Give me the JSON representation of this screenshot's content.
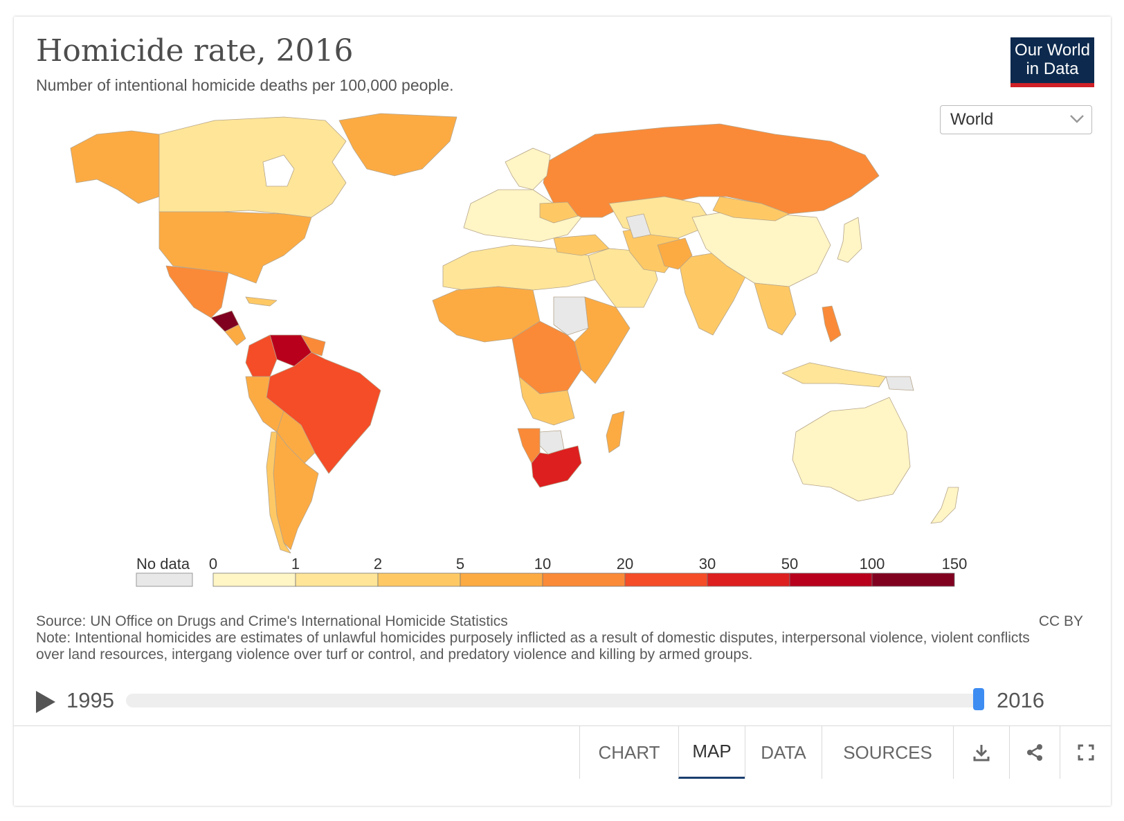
{
  "header": {
    "title": "Homicide rate, 2016",
    "subtitle": "Number of intentional homicide deaths per 100,000 people."
  },
  "logo": {
    "line1": "Our World",
    "line2": "in Data"
  },
  "region_select": {
    "value": "World"
  },
  "legend": {
    "no_data_label": "No data",
    "ticks": [
      "0",
      "1",
      "2",
      "5",
      "10",
      "20",
      "30",
      "50",
      "100",
      "150"
    ],
    "colors": [
      "#fff5c5",
      "#fee598",
      "#fec965",
      "#fcab43",
      "#fa8a38",
      "#f44d28",
      "#dd1f1f",
      "#b8001c",
      "#800020"
    ],
    "no_data_color": "#e8e8e8"
  },
  "source": {
    "line": "Source: UN Office on Drugs and Crime's International Homicide Statistics",
    "note": "Note: Intentional homicides are estimates of unlawful homicides purposely inflicted as a result of domestic disputes, interpersonal violence, violent conflicts over land resources, intergang violence over turf or control, and predatory violence and killing by armed groups.",
    "license": "CC BY"
  },
  "timeline": {
    "start": "1995",
    "end": "2016",
    "position": 1.0
  },
  "tabs": [
    {
      "label": "CHART",
      "active": false
    },
    {
      "label": "MAP",
      "active": true
    },
    {
      "label": "DATA",
      "active": false
    },
    {
      "label": "SOURCES",
      "active": false
    }
  ],
  "icons": [
    "download-icon",
    "share-icon",
    "fullscreen-icon"
  ]
}
